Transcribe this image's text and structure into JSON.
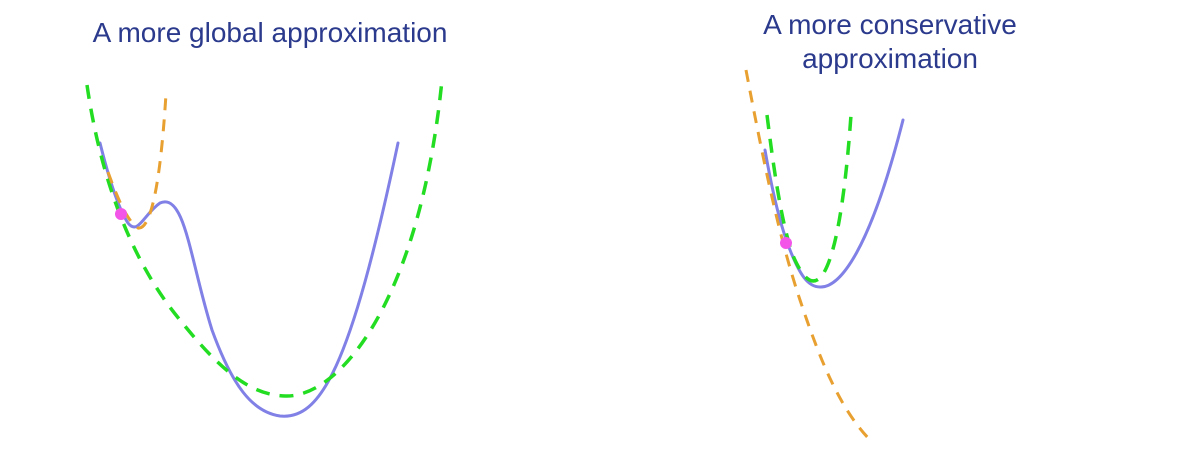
{
  "colors": {
    "objective": "#8080e6",
    "global_approx": "#22dd22",
    "local_approx": "#e8a030",
    "point": "#f255e8",
    "title": "#2b3a8c"
  },
  "panels": [
    {
      "title": "A more global approximation"
    },
    {
      "title_line1": "A more conservative",
      "title_line2": "approximation"
    }
  ]
}
